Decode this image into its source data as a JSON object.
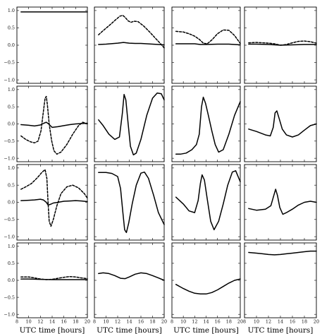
{
  "chart_data": {
    "type": "line",
    "layout": {
      "rows": 4,
      "cols": 4
    },
    "xlim": [
      8,
      20
    ],
    "ylim": [
      -1.1,
      1.1
    ],
    "xticks": [
      8,
      10,
      12,
      14,
      16,
      18,
      20
    ],
    "yticks": [
      -1.0,
      -0.5,
      0.0,
      0.5,
      1.0
    ],
    "xtick_labels": [
      "8",
      "10",
      "12",
      "14",
      "16",
      "18",
      "20"
    ],
    "ytick_labels": [
      "−1.0",
      "−0.5",
      "0.0",
      "0.5",
      "1.0"
    ],
    "xlabel": "UTC time [hours]",
    "grid": false,
    "colors": {
      "line": "#000000",
      "frame": "#000000",
      "background": "#ffffff"
    },
    "panels": [
      {
        "row": 0,
        "col": 0,
        "series": [
          {
            "style": "solid",
            "x": [
              8.7,
              20
            ],
            "y": [
              0.96,
              0.96
            ]
          }
        ]
      },
      {
        "row": 0,
        "col": 1,
        "series": [
          {
            "style": "solid",
            "x": [
              8.7,
              10,
              12,
              13,
              14,
              15,
              16,
              18,
              20
            ],
            "y": [
              0.02,
              0.03,
              0.06,
              0.08,
              0.06,
              0.05,
              0.05,
              0.03,
              0.01
            ]
          },
          {
            "style": "dashed",
            "x": [
              8.7,
              9.5,
              10.5,
              11.5,
              12.4,
              12.9,
              13.3,
              13.8,
              14.3,
              14.8,
              15.5,
              16.5,
              17.5,
              18.5,
              19.5,
              20
            ],
            "y": [
              0.3,
              0.42,
              0.56,
              0.71,
              0.84,
              0.86,
              0.8,
              0.7,
              0.66,
              0.69,
              0.68,
              0.55,
              0.38,
              0.2,
              0.02,
              -0.08
            ]
          }
        ]
      },
      {
        "row": 0,
        "col": 2,
        "series": [
          {
            "style": "solid",
            "x": [
              8.7,
              10,
              12,
              13,
              14,
              16,
              18,
              20
            ],
            "y": [
              0.04,
              0.04,
              0.04,
              0.02,
              0.02,
              0.03,
              0.03,
              0.01
            ]
          },
          {
            "style": "dashed",
            "x": [
              8.7,
              10,
              11,
              12,
              12.8,
              13.5,
              14.2,
              15,
              16,
              17,
              18,
              19,
              20
            ],
            "y": [
              0.4,
              0.38,
              0.33,
              0.26,
              0.17,
              0.06,
              0.04,
              0.15,
              0.33,
              0.44,
              0.43,
              0.28,
              0.05
            ]
          }
        ]
      },
      {
        "row": 0,
        "col": 3,
        "series": [
          {
            "style": "solid",
            "x": [
              8.7,
              10,
              12,
              14,
              16,
              18,
              20
            ],
            "y": [
              0.03,
              0.03,
              0.02,
              0.0,
              0.01,
              0.02,
              0.02
            ]
          },
          {
            "style": "dashed",
            "x": [
              8.7,
              10,
              12,
              13,
              14,
              15,
              16,
              17,
              18,
              19,
              20
            ],
            "y": [
              0.07,
              0.08,
              0.06,
              0.04,
              0.0,
              0.02,
              0.07,
              0.11,
              0.12,
              0.1,
              0.06
            ]
          }
        ]
      },
      {
        "row": 1,
        "col": 0,
        "series": [
          {
            "style": "solid",
            "x": [
              8.7,
              10,
              11,
              12,
              12.6,
              13,
              13.4,
              14,
              15,
              16,
              17,
              18,
              20
            ],
            "y": [
              -0.02,
              -0.04,
              -0.06,
              -0.03,
              0.02,
              0.05,
              0.0,
              -0.1,
              -0.08,
              -0.05,
              -0.02,
              0.0,
              0.02
            ]
          },
          {
            "style": "dashed",
            "x": [
              8.7,
              9.5,
              10.3,
              11,
              11.6,
              12.1,
              12.5,
              12.8,
              13,
              13.2,
              13.5,
              13.9,
              14.3,
              14.8,
              15.5,
              16.5,
              17.5,
              18.5,
              19.2,
              20
            ],
            "y": [
              -0.35,
              -0.45,
              -0.52,
              -0.55,
              -0.5,
              -0.2,
              0.35,
              0.75,
              0.8,
              0.55,
              0.0,
              -0.48,
              -0.78,
              -0.88,
              -0.82,
              -0.6,
              -0.3,
              -0.05,
              0.05,
              0.0
            ]
          }
        ]
      },
      {
        "row": 1,
        "col": 1,
        "series": [
          {
            "style": "solid",
            "x": [
              8.7,
              9.5,
              10.5,
              11.5,
              12.3,
              12.8,
              13.1,
              13.4,
              13.8,
              14.2,
              14.7,
              15.2,
              16,
              17,
              18,
              18.8,
              19.5,
              20
            ],
            "y": [
              0.12,
              -0.05,
              -0.3,
              -0.45,
              -0.38,
              0.3,
              0.86,
              0.7,
              0.0,
              -0.65,
              -0.9,
              -0.85,
              -0.45,
              0.25,
              0.75,
              0.9,
              0.88,
              0.7
            ]
          }
        ]
      },
      {
        "row": 1,
        "col": 2,
        "series": [
          {
            "style": "solid",
            "x": [
              8.7,
              9.5,
              10.5,
              11.5,
              12.3,
              12.8,
              13.2,
              13.5,
              13.9,
              14.4,
              15,
              15.6,
              16.2,
              17,
              18,
              19,
              20
            ],
            "y": [
              -0.88,
              -0.88,
              -0.85,
              -0.75,
              -0.6,
              -0.3,
              0.5,
              0.78,
              0.6,
              0.25,
              -0.2,
              -0.6,
              -0.82,
              -0.75,
              -0.3,
              0.25,
              0.65
            ]
          }
        ]
      },
      {
        "row": 1,
        "col": 3,
        "series": [
          {
            "style": "solid",
            "x": [
              8.7,
              10,
              11.5,
              12.3,
              12.8,
              13.1,
              13.4,
              13.8,
              14.3,
              15,
              16,
              17,
              18,
              19,
              20
            ],
            "y": [
              -0.15,
              -0.22,
              -0.32,
              -0.35,
              -0.1,
              0.32,
              0.38,
              0.15,
              -0.15,
              -0.32,
              -0.38,
              -0.32,
              -0.18,
              -0.05,
              0.0
            ]
          }
        ]
      },
      {
        "row": 2,
        "col": 0,
        "series": [
          {
            "style": "solid",
            "x": [
              8.7,
              10,
              11,
              12,
              12.5,
              13,
              13.3,
              13.7,
              14.2,
              15,
              16,
              17,
              18,
              19,
              20
            ],
            "y": [
              0.05,
              0.06,
              0.07,
              0.09,
              0.07,
              0.0,
              -0.08,
              -0.06,
              -0.02,
              0.0,
              0.03,
              0.04,
              0.05,
              0.04,
              0.02
            ]
          },
          {
            "style": "dashed",
            "x": [
              8.7,
              9.5,
              10.5,
              11.5,
              12.3,
              12.8,
              13.1,
              13.3,
              13.5,
              13.8,
              14.2,
              14.8,
              15.5,
              16.5,
              17.5,
              18.5,
              19.5,
              20
            ],
            "y": [
              0.38,
              0.45,
              0.55,
              0.72,
              0.88,
              0.95,
              0.7,
              0.0,
              -0.55,
              -0.7,
              -0.5,
              -0.1,
              0.25,
              0.45,
              0.5,
              0.42,
              0.25,
              0.12
            ]
          }
        ]
      },
      {
        "row": 2,
        "col": 1,
        "series": [
          {
            "style": "solid",
            "x": [
              8.7,
              10,
              11,
              12,
              12.5,
              12.9,
              13.2,
              13.5,
              13.9,
              14.5,
              15.2,
              16,
              16.6,
              17.3,
              18.2,
              19,
              20
            ],
            "y": [
              0.87,
              0.87,
              0.84,
              0.75,
              0.4,
              -0.3,
              -0.8,
              -0.88,
              -0.6,
              -0.05,
              0.5,
              0.85,
              0.88,
              0.7,
              0.2,
              -0.3,
              -0.65
            ]
          }
        ]
      },
      {
        "row": 2,
        "col": 2,
        "series": [
          {
            "style": "solid",
            "x": [
              8.7,
              10,
              11,
              12,
              12.6,
              13,
              13.3,
              13.7,
              14.2,
              14.8,
              15.4,
              16.2,
              17,
              17.8,
              18.6,
              19.2,
              20
            ],
            "y": [
              0.15,
              -0.05,
              -0.25,
              -0.3,
              0.05,
              0.55,
              0.8,
              0.65,
              0.1,
              -0.55,
              -0.8,
              -0.55,
              -0.05,
              0.5,
              0.88,
              0.92,
              0.6
            ]
          }
        ]
      },
      {
        "row": 2,
        "col": 3,
        "series": [
          {
            "style": "solid",
            "x": [
              8.7,
              10,
              11.5,
              12.4,
              12.9,
              13.2,
              13.5,
              13.9,
              14.4,
              15,
              16,
              17,
              18,
              19,
              20
            ],
            "y": [
              -0.18,
              -0.23,
              -0.2,
              -0.1,
              0.2,
              0.38,
              0.2,
              -0.15,
              -0.35,
              -0.3,
              -0.2,
              -0.08,
              0.0,
              0.03,
              0.0
            ]
          }
        ]
      },
      {
        "row": 3,
        "col": 0,
        "series": [
          {
            "style": "solid",
            "x": [
              8.7,
              10,
              12,
              14,
              16,
              18,
              20
            ],
            "y": [
              0.04,
              0.04,
              0.03,
              0.02,
              0.02,
              0.02,
              0.02
            ]
          },
          {
            "style": "dashed",
            "x": [
              8.7,
              10,
              11,
              12,
              13,
              14,
              15,
              16,
              17,
              18,
              19,
              20
            ],
            "y": [
              0.1,
              0.1,
              0.07,
              0.04,
              0.02,
              0.03,
              0.06,
              0.09,
              0.11,
              0.1,
              0.07,
              0.05
            ]
          }
        ]
      },
      {
        "row": 3,
        "col": 1,
        "series": [
          {
            "style": "solid",
            "x": [
              8.7,
              9.5,
              10.5,
              11.5,
              12.5,
              13.3,
              14,
              15,
              16,
              17,
              18,
              19,
              20
            ],
            "y": [
              0.2,
              0.22,
              0.2,
              0.14,
              0.06,
              0.05,
              0.1,
              0.18,
              0.22,
              0.2,
              0.14,
              0.07,
              0.0
            ]
          }
        ]
      },
      {
        "row": 3,
        "col": 2,
        "series": [
          {
            "style": "solid",
            "x": [
              8.7,
              10,
              11,
              12,
              13,
              14,
              15,
              16,
              17,
              18,
              19,
              20
            ],
            "y": [
              -0.12,
              -0.24,
              -0.32,
              -0.38,
              -0.4,
              -0.4,
              -0.36,
              -0.28,
              -0.18,
              -0.08,
              0.0,
              0.04
            ]
          }
        ]
      },
      {
        "row": 3,
        "col": 3,
        "series": [
          {
            "style": "solid",
            "x": [
              8.7,
              10,
              11,
              12,
              13,
              14,
              15,
              16,
              17,
              18,
              19,
              20
            ],
            "y": [
              0.82,
              0.8,
              0.78,
              0.76,
              0.75,
              0.76,
              0.78,
              0.8,
              0.82,
              0.84,
              0.86,
              0.86
            ]
          }
        ]
      }
    ]
  }
}
